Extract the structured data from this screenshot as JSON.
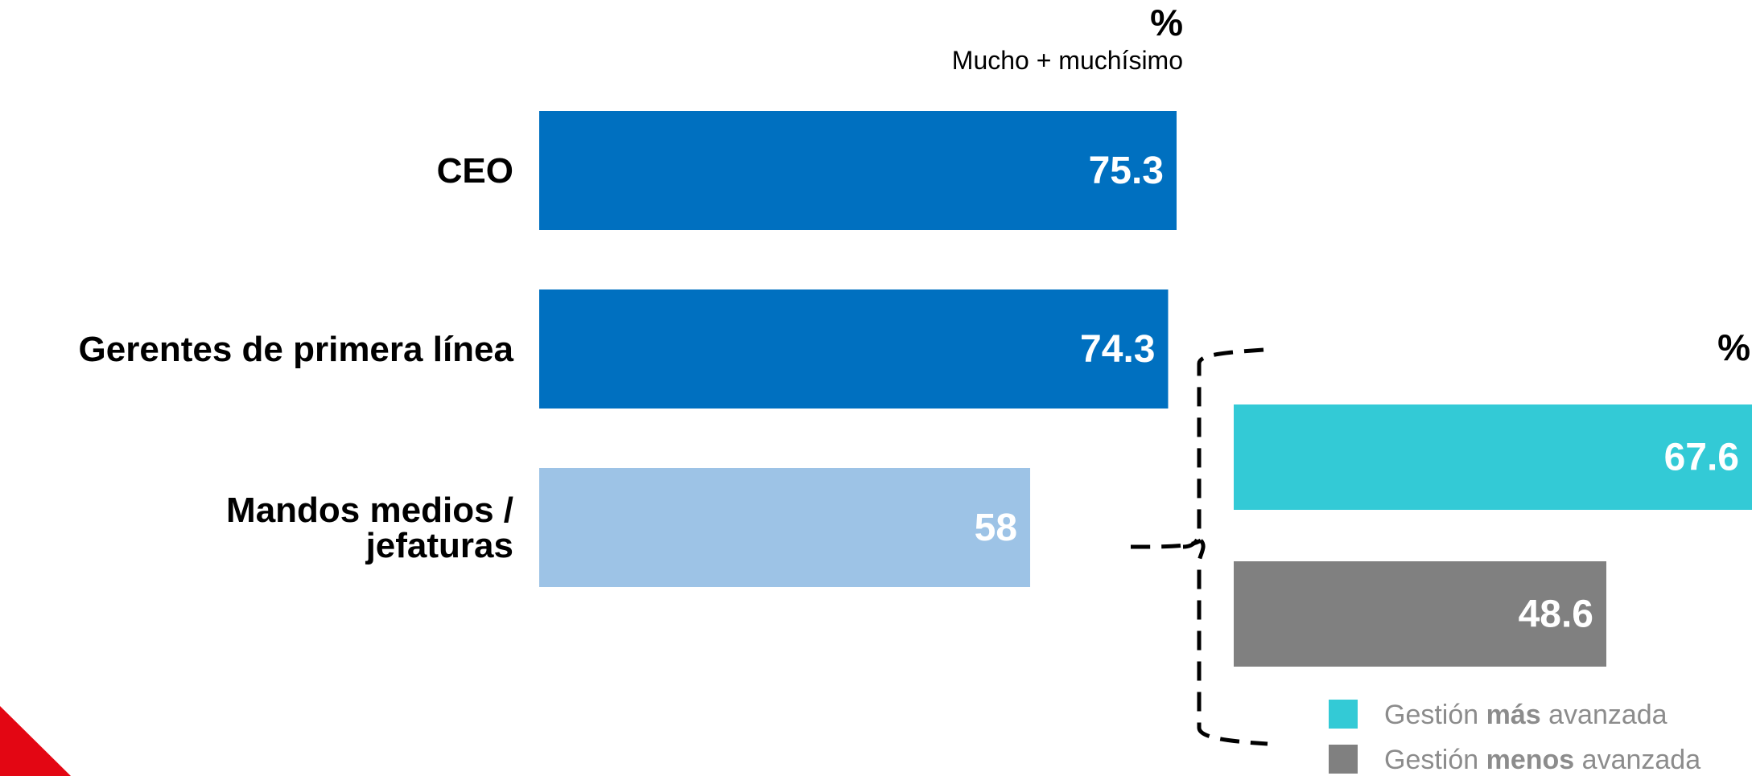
{
  "chart_data": [
    {
      "type": "bar",
      "orientation": "horizontal",
      "unit_label": "%",
      "subtitle": "Mucho + muchísimo",
      "categories": [
        "CEO",
        "Gerentes de primera línea",
        "Mandos medios / jefaturas"
      ],
      "category_lines": [
        [
          "CEO"
        ],
        [
          "Gerentes de primera línea"
        ],
        [
          "Mandos medios /",
          "jefaturas"
        ]
      ],
      "values": [
        75.3,
        74.3,
        58
      ],
      "value_labels": [
        "75.3",
        "74.3",
        "58"
      ],
      "colors": [
        "#0070c0",
        "#0070c0",
        "#9dc3e6"
      ],
      "xlim": [
        0,
        75.3
      ]
    },
    {
      "type": "bar",
      "orientation": "horizontal",
      "unit_label": "%",
      "breakdown_of": "Mandos medios / jefaturas",
      "values": [
        67.6,
        48.6
      ],
      "value_labels": [
        "67.6",
        "48.6"
      ],
      "colors": [
        "#33cad6",
        "#808080"
      ],
      "xlim": [
        0,
        67.6
      ],
      "legend": [
        {
          "prefix": "Gestión ",
          "bold": "más",
          "suffix": " avanzada",
          "color": "#33cad6"
        },
        {
          "prefix": "Gestión ",
          "bold": "menos",
          "suffix": " avanzada",
          "color": "#808080"
        }
      ],
      "legend_position": "bottom"
    }
  ],
  "colors": {
    "text": "#000000",
    "bar_label": "#ffffff",
    "legend_text": "#8c8c8c",
    "corner_accent": "#e30613"
  }
}
